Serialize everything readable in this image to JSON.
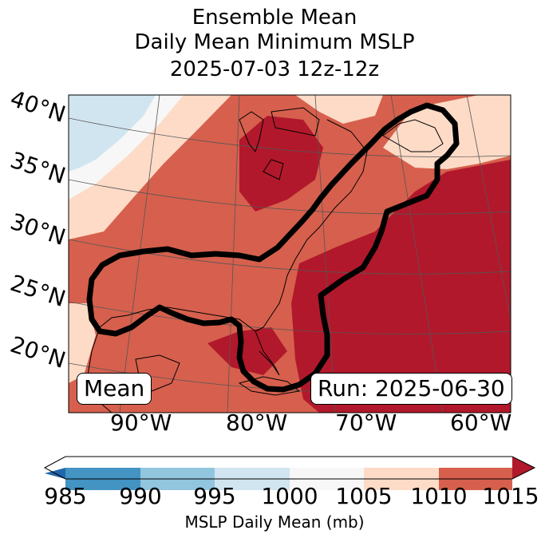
{
  "title": {
    "line1": "Ensemble Mean",
    "line2": "Daily Mean Minimum MSLP",
    "line3": "2025-07-03 12z-12z"
  },
  "lat_labels": [
    "40°N",
    "35°N",
    "30°N",
    "25°N",
    "20°N"
  ],
  "lon_labels": [
    "90°W",
    "80°W",
    "70°W",
    "60°W"
  ],
  "boxes": {
    "left": "Mean",
    "right": "Run: 2025-06-30"
  },
  "colorbar": {
    "ticks": [
      "985",
      "990",
      "995",
      "1000",
      "1005",
      "1010",
      "1015"
    ],
    "label": "MSLP Daily Mean (mb)",
    "colors": [
      "#2166ac",
      "#4393c3",
      "#92c5de",
      "#d1e5f0",
      "#f7f7f7",
      "#fddbc7",
      "#d6604d",
      "#b2182b"
    ]
  }
}
